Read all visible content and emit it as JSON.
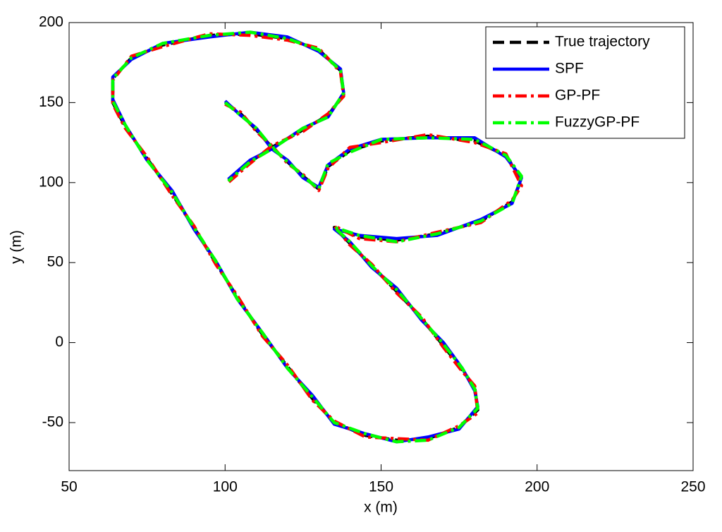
{
  "chart_data": {
    "type": "line",
    "x_label": "x (m)",
    "y_label": "y (m)",
    "x": [
      100,
      105,
      110,
      115,
      120,
      125,
      130,
      133,
      140,
      150,
      165,
      180,
      190,
      195,
      192,
      182,
      168,
      155,
      143,
      135,
      140,
      147,
      155,
      163,
      170,
      176,
      180,
      181,
      175,
      165,
      155,
      145,
      135,
      128,
      120,
      112,
      104,
      97,
      90,
      83,
      75,
      68,
      64,
      64,
      70,
      80,
      95,
      108,
      120,
      130,
      137,
      138,
      133,
      125,
      115,
      108,
      101
    ],
    "series": [
      {
        "name": "True trajectory",
        "color": "#000000",
        "dash": "dashed",
        "values": [
          150,
          143,
          133,
          122,
          113,
          104,
          96,
          110,
          120,
          126,
          129,
          126,
          117,
          102,
          88,
          76,
          68,
          64,
          66,
          72,
          62,
          48,
          32,
          15,
          -2,
          -17,
          -28,
          -42,
          -53,
          -60,
          -61,
          -58,
          -50,
          -35,
          -15,
          5,
          28,
          50,
          72,
          93,
          115,
          135,
          150,
          165,
          178,
          186,
          192,
          193,
          190,
          183,
          170,
          155,
          142,
          133,
          122,
          113,
          101
        ]
      },
      {
        "name": "SPF",
        "color": "#0000ff",
        "dash": "solid",
        "values": [
          151,
          142,
          134,
          121,
          114,
          103,
          97,
          111,
          121,
          127,
          128,
          128,
          116,
          103,
          87,
          77,
          67,
          65,
          67,
          71,
          63,
          47,
          34,
          14,
          0,
          -16,
          -30,
          -40,
          -54,
          -59,
          -62,
          -57,
          -51,
          -33,
          -16,
          6,
          27,
          51,
          71,
          95,
          114,
          136,
          152,
          166,
          177,
          187,
          191,
          194,
          191,
          182,
          171,
          156,
          141,
          134,
          121,
          114,
          102
        ]
      },
      {
        "name": "GP-PF",
        "color": "#ff0000",
        "dash": "dashdot",
        "values": [
          149,
          144,
          132,
          123,
          112,
          105,
          95,
          109,
          122,
          125,
          130,
          125,
          118,
          98,
          89,
          75,
          69,
          63,
          65,
          73,
          61,
          49,
          31,
          16,
          -3,
          -18,
          -27,
          -44,
          -52,
          -61,
          -60,
          -59,
          -49,
          -36,
          -14,
          4,
          29,
          49,
          73,
          92,
          116,
          134,
          149,
          164,
          179,
          185,
          193,
          192,
          189,
          184,
          169,
          154,
          143,
          132,
          123,
          112,
          100
        ]
      },
      {
        "name": "FuzzyGP-PF",
        "color": "#00ff00",
        "dash": "dashdot",
        "values": [
          150,
          142,
          134,
          122,
          113,
          104,
          96,
          112,
          119,
          127,
          128,
          127,
          117,
          104,
          87,
          76,
          68,
          63,
          67,
          72,
          63,
          48,
          33,
          15,
          -1,
          -16,
          -29,
          -41,
          -53,
          -61,
          -62,
          -57,
          -50,
          -34,
          -16,
          6,
          27,
          51,
          72,
          94,
          114,
          136,
          151,
          165,
          178,
          187,
          192,
          194,
          190,
          183,
          170,
          156,
          141,
          134,
          121,
          113,
          101
        ]
      }
    ],
    "xlim": [
      50,
      250
    ],
    "xticks": [
      50,
      100,
      150,
      200,
      250
    ],
    "ylim": [
      -80,
      200
    ],
    "yticks": [
      -50,
      0,
      50,
      100,
      150,
      200
    ],
    "legend": "northeast"
  }
}
